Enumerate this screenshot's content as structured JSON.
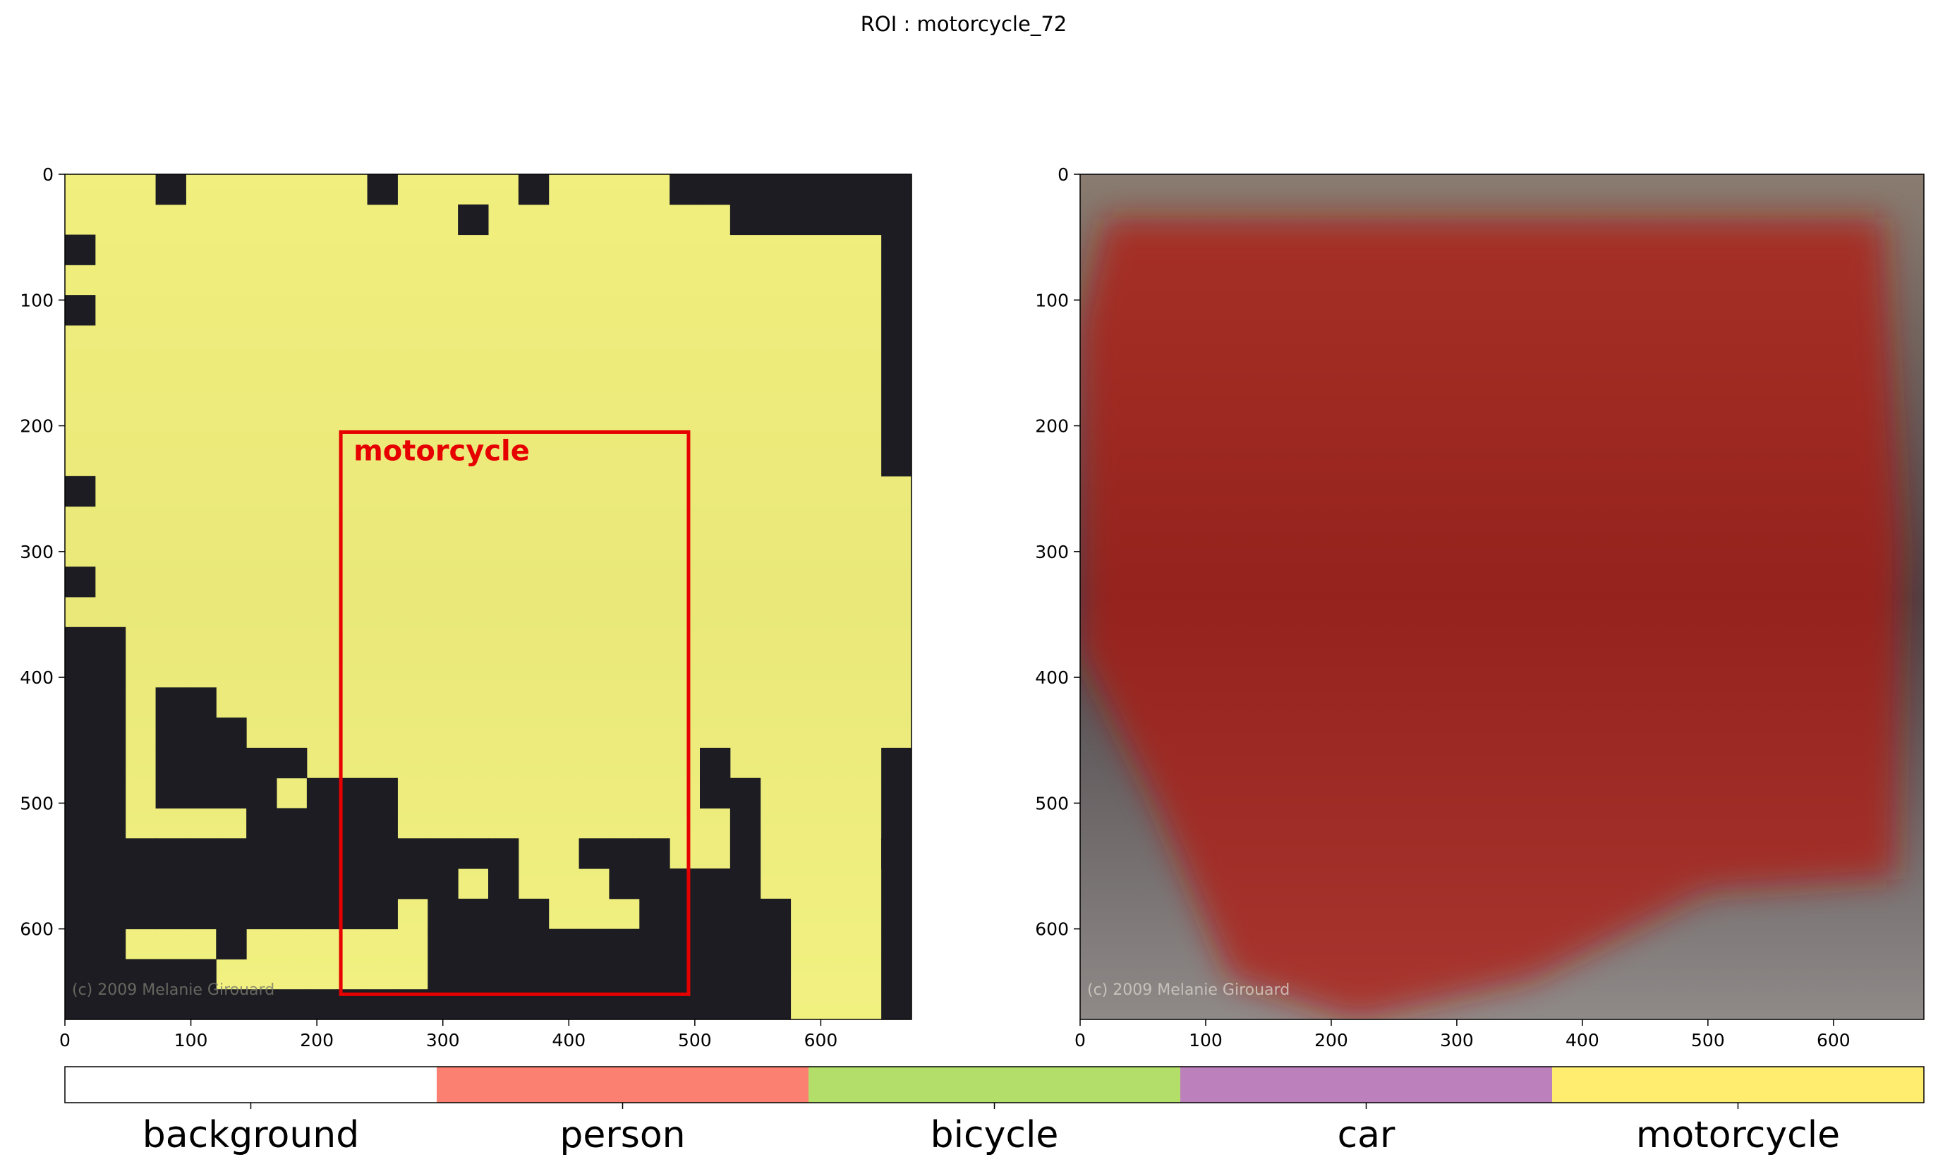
{
  "figure": {
    "title": "ROI : motorcycle_72",
    "watermark": "(c) 2009 Melanie Girouard"
  },
  "colors": {
    "segmentation_overlay": "#ffff80",
    "heatmap_overlay": "#b3190f",
    "box": "#e60000",
    "photo_dark": "#2a2a30",
    "photo_mid": "#6f6870",
    "photo_light": "#b3aca8"
  },
  "chart_data": [
    {
      "type": "heatmap",
      "panel": "segmentation",
      "x_ticks": [
        0,
        100,
        200,
        300,
        400,
        500,
        600
      ],
      "y_ticks": [
        0,
        100,
        200,
        300,
        400,
        500,
        600
      ],
      "xlim": [
        0,
        672
      ],
      "ylim": [
        672,
        0
      ],
      "grid": false,
      "cell_size": 24,
      "dark_cells": [
        [
          0,
          3
        ],
        [
          0,
          10
        ],
        [
          0,
          15
        ],
        [
          0,
          20
        ],
        [
          0,
          21
        ],
        [
          0,
          22
        ],
        [
          0,
          23
        ],
        [
          0,
          24
        ],
        [
          0,
          25
        ],
        [
          0,
          26
        ],
        [
          0,
          27
        ],
        [
          1,
          13
        ],
        [
          1,
          22
        ],
        [
          1,
          23
        ],
        [
          1,
          24
        ],
        [
          1,
          25
        ],
        [
          1,
          26
        ],
        [
          1,
          27
        ],
        [
          2,
          0
        ],
        [
          2,
          27
        ],
        [
          3,
          27
        ],
        [
          4,
          0
        ],
        [
          4,
          27
        ],
        [
          5,
          27
        ],
        [
          6,
          27
        ],
        [
          7,
          27
        ],
        [
          8,
          27
        ],
        [
          9,
          27
        ],
        [
          10,
          0
        ],
        [
          13,
          0
        ],
        [
          15,
          0
        ],
        [
          15,
          1
        ],
        [
          16,
          0
        ],
        [
          16,
          1
        ],
        [
          17,
          0
        ],
        [
          17,
          1
        ],
        [
          17,
          3
        ],
        [
          17,
          4
        ],
        [
          18,
          0
        ],
        [
          18,
          1
        ],
        [
          18,
          3
        ],
        [
          18,
          4
        ],
        [
          18,
          5
        ],
        [
          19,
          0
        ],
        [
          19,
          1
        ],
        [
          19,
          3
        ],
        [
          19,
          4
        ],
        [
          19,
          5
        ],
        [
          19,
          6
        ],
        [
          19,
          7
        ],
        [
          20,
          0
        ],
        [
          20,
          1
        ],
        [
          20,
          3
        ],
        [
          20,
          4
        ],
        [
          20,
          5
        ],
        [
          20,
          6
        ],
        [
          20,
          8
        ],
        [
          20,
          9
        ],
        [
          20,
          10
        ],
        [
          21,
          0
        ],
        [
          21,
          1
        ],
        [
          21,
          6
        ],
        [
          21,
          7
        ],
        [
          21,
          8
        ],
        [
          21,
          9
        ],
        [
          21,
          10
        ],
        [
          22,
          0
        ],
        [
          22,
          1
        ],
        [
          22,
          2
        ],
        [
          22,
          3
        ],
        [
          22,
          4
        ],
        [
          22,
          5
        ],
        [
          22,
          6
        ],
        [
          22,
          7
        ],
        [
          22,
          8
        ],
        [
          22,
          9
        ],
        [
          22,
          10
        ],
        [
          23,
          0
        ],
        [
          23,
          1
        ],
        [
          23,
          2
        ],
        [
          23,
          3
        ],
        [
          23,
          4
        ],
        [
          23,
          5
        ],
        [
          23,
          6
        ],
        [
          23,
          7
        ],
        [
          23,
          8
        ],
        [
          23,
          9
        ],
        [
          23,
          10
        ],
        [
          19,
          27
        ],
        [
          20,
          27
        ],
        [
          21,
          27
        ],
        [
          22,
          27
        ],
        [
          23,
          27
        ],
        [
          24,
          27
        ],
        [
          25,
          27
        ],
        [
          26,
          27
        ],
        [
          27,
          27
        ],
        [
          22,
          19
        ],
        [
          22,
          27
        ],
        [
          19,
          21
        ],
        [
          20,
          21
        ],
        [
          20,
          22
        ],
        [
          21,
          22
        ],
        [
          22,
          22
        ],
        [
          23,
          22
        ],
        [
          24,
          0
        ],
        [
          24,
          1
        ],
        [
          24,
          2
        ],
        [
          24,
          3
        ],
        [
          24,
          4
        ],
        [
          24,
          5
        ],
        [
          24,
          6
        ],
        [
          24,
          7
        ],
        [
          24,
          8
        ],
        [
          24,
          9
        ],
        [
          24,
          10
        ],
        [
          24,
          23
        ],
        [
          25,
          0
        ],
        [
          25,
          1
        ],
        [
          25,
          5
        ],
        [
          25,
          23
        ],
        [
          26,
          0
        ],
        [
          26,
          1
        ],
        [
          26,
          2
        ],
        [
          26,
          3
        ],
        [
          26,
          4
        ],
        [
          26,
          20
        ],
        [
          26,
          21
        ],
        [
          26,
          22
        ],
        [
          26,
          23
        ],
        [
          27,
          0
        ],
        [
          27,
          1
        ],
        [
          27,
          2
        ],
        [
          27,
          3
        ],
        [
          27,
          4
        ],
        [
          27,
          5
        ],
        [
          27,
          6
        ],
        [
          27,
          7
        ],
        [
          27,
          16
        ],
        [
          27,
          17
        ],
        [
          27,
          18
        ],
        [
          27,
          19
        ],
        [
          27,
          20
        ],
        [
          27,
          21
        ],
        [
          27,
          22
        ],
        [
          27,
          23
        ],
        [
          22,
          11
        ],
        [
          22,
          12
        ],
        [
          22,
          13
        ],
        [
          22,
          14
        ],
        [
          22,
          17
        ],
        [
          22,
          18
        ],
        [
          23,
          11
        ],
        [
          23,
          12
        ],
        [
          23,
          14
        ],
        [
          23,
          18
        ],
        [
          23,
          19
        ],
        [
          23,
          20
        ],
        [
          23,
          21
        ],
        [
          24,
          12
        ],
        [
          24,
          13
        ],
        [
          24,
          14
        ],
        [
          24,
          15
        ],
        [
          24,
          19
        ],
        [
          24,
          20
        ],
        [
          24,
          21
        ],
        [
          24,
          22
        ],
        [
          25,
          12
        ],
        [
          25,
          13
        ],
        [
          25,
          14
        ],
        [
          25,
          15
        ],
        [
          25,
          16
        ],
        [
          25,
          17
        ],
        [
          25,
          18
        ],
        [
          25,
          19
        ],
        [
          25,
          20
        ],
        [
          25,
          21
        ],
        [
          25,
          22
        ],
        [
          26,
          12
        ],
        [
          26,
          13
        ],
        [
          26,
          14
        ],
        [
          26,
          15
        ],
        [
          26,
          16
        ],
        [
          26,
          17
        ],
        [
          26,
          18
        ],
        [
          26,
          19
        ],
        [
          27,
          8
        ],
        [
          27,
          9
        ],
        [
          27,
          10
        ],
        [
          27,
          11
        ],
        [
          27,
          12
        ],
        [
          27,
          13
        ],
        [
          27,
          14
        ],
        [
          27,
          15
        ]
      ],
      "box": {
        "label": "motorcycle",
        "x0": 219,
        "y0": 205,
        "x1": 495,
        "y1": 652
      }
    },
    {
      "type": "heatmap",
      "panel": "activation",
      "x_ticks": [
        0,
        100,
        200,
        300,
        400,
        500,
        600
      ],
      "y_ticks": [
        0,
        100,
        200,
        300,
        400,
        500,
        600
      ],
      "xlim": [
        0,
        672
      ],
      "ylim": [
        672,
        0
      ],
      "grid": false,
      "hot_region": [
        [
          20,
          35
        ],
        [
          640,
          35
        ],
        [
          655,
          300
        ],
        [
          650,
          560
        ],
        [
          500,
          570
        ],
        [
          360,
          640
        ],
        [
          220,
          672
        ],
        [
          120,
          640
        ],
        [
          60,
          500
        ],
        [
          0,
          380
        ],
        [
          0,
          120
        ]
      ]
    },
    {
      "type": "legend",
      "categories": [
        "background",
        "person",
        "bicycle",
        "car",
        "motorcycle"
      ],
      "colors": [
        "#ffffff",
        "#fb8072",
        "#b3de69",
        "#bc80bd",
        "#ffed6f"
      ]
    }
  ]
}
